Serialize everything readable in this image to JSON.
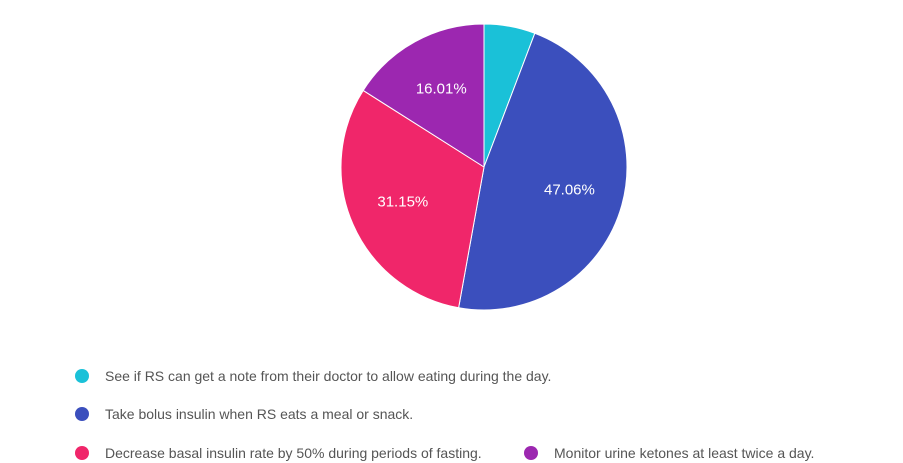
{
  "chart_data": {
    "type": "pie",
    "title": "",
    "legend_position": "bottom",
    "slices": [
      {
        "label": "See if RS can get a note from their doctor to allow eating during the day.",
        "value": 5.78,
        "display": "",
        "color": "#1ac1d8"
      },
      {
        "label": "Take bolus insulin when RS eats a meal or snack.",
        "value": 47.06,
        "display": "47.06%",
        "color": "#3b4fbd"
      },
      {
        "label": "Decrease basal insulin rate by 50% during periods of fasting.",
        "value": 31.15,
        "display": "31.15%",
        "color": "#f0266a"
      },
      {
        "label": "Monitor urine ketones at least twice a day.",
        "value": 16.01,
        "display": "16.01%",
        "color": "#9c27b0"
      }
    ]
  }
}
